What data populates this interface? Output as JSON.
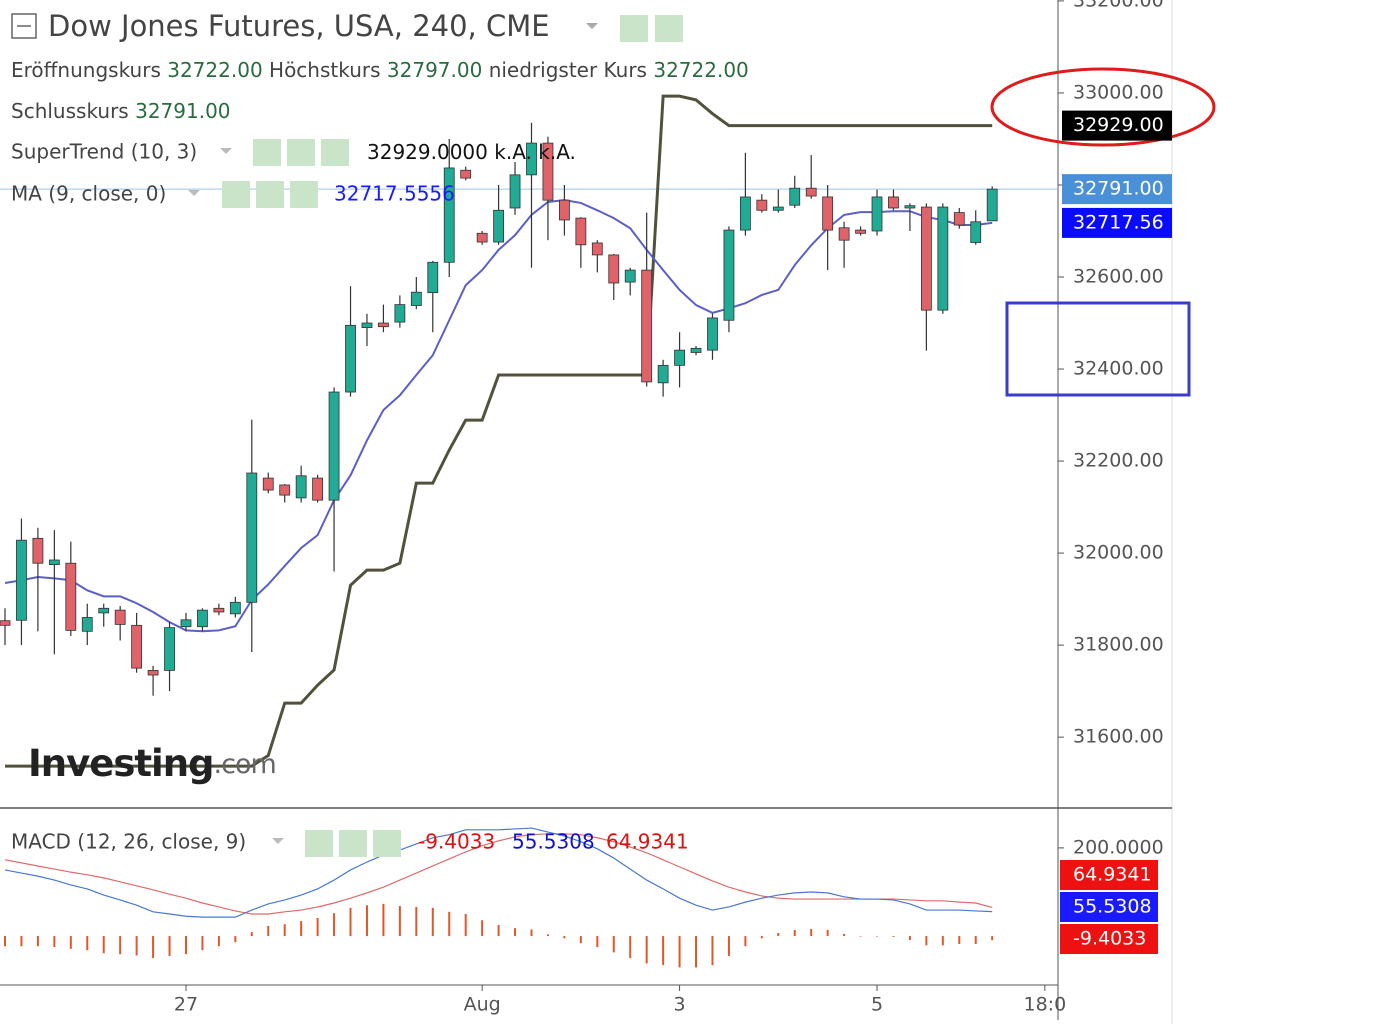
{
  "header": {
    "title": "Dow Jones Futures, USA, 240, CME",
    "ohlc": [
      {
        "label": "Eröffnungskurs",
        "value": "32722.00"
      },
      {
        "label": "Höchstkurs",
        "value": "32797.00"
      },
      {
        "label": "niedrigster Kurs",
        "value": "32722.00"
      }
    ],
    "close": {
      "label": "Schlusskurs",
      "value": "32791.00"
    }
  },
  "legend_values": {
    "supertrend": [
      "32929.0000",
      "k.A.",
      "k.A."
    ],
    "ma": "32717.5556"
  },
  "watermark": [
    "Investing",
    ".com"
  ],
  "chart_data": [
    {
      "type": "candlestick",
      "up_color": "#22ab94",
      "down_color": "#e0636a",
      "open": [
        31853,
        31854,
        32032,
        31975,
        31978,
        31830,
        31870,
        31876,
        31843,
        31745,
        31745,
        31840,
        31840,
        31880,
        31868,
        31893,
        32163,
        32148,
        32120,
        32163,
        32115,
        32350,
        32490,
        32500,
        32502,
        32538,
        32566,
        32632,
        32832,
        32695,
        32676,
        32750,
        32822,
        32891,
        32767,
        32728,
        32674,
        32648,
        32589,
        32615,
        32370,
        32408,
        32436,
        32441,
        32506,
        32702,
        32767,
        32745,
        32756,
        32793,
        32774,
        32707,
        32702,
        32700,
        32774,
        32750,
        32752,
        32528,
        32740,
        32675,
        32722
      ],
      "high": [
        31880,
        32075,
        32055,
        32050,
        32025,
        31890,
        31890,
        31885,
        31870,
        31755,
        31850,
        31870,
        31880,
        31890,
        31905,
        32290,
        32175,
        32150,
        32190,
        32170,
        32360,
        32580,
        32520,
        32540,
        32560,
        32600,
        32635,
        32900,
        32840,
        32700,
        32800,
        32850,
        32935,
        32905,
        32800,
        32730,
        32680,
        32650,
        32620,
        32740,
        32420,
        32480,
        32450,
        32520,
        32710,
        32870,
        32780,
        32790,
        32820,
        32865,
        32800,
        32720,
        32710,
        32790,
        32790,
        32760,
        32760,
        32760,
        32750,
        32745,
        32797
      ],
      "low": [
        31800,
        31800,
        31830,
        31780,
        31820,
        31800,
        31840,
        31810,
        31740,
        31690,
        31700,
        31830,
        31830,
        31865,
        31860,
        31785,
        32130,
        32110,
        32110,
        32110,
        31960,
        32340,
        32450,
        32480,
        32490,
        32530,
        32480,
        32600,
        32810,
        32670,
        32670,
        32735,
        32620,
        32680,
        32690,
        32620,
        32610,
        32550,
        32560,
        32362,
        32340,
        32360,
        32430,
        32420,
        32480,
        32690,
        32740,
        32740,
        32750,
        32770,
        32615,
        32620,
        32690,
        32690,
        32745,
        32700,
        32440,
        32520,
        32705,
        32670,
        32722
      ],
      "close": [
        31843,
        32028,
        31978,
        31985,
        31832,
        31860,
        31880,
        31845,
        31750,
        31735,
        31838,
        31855,
        31876,
        31872,
        31893,
        32174,
        32137,
        32126,
        32168,
        32115,
        32350,
        32495,
        32500,
        32492,
        32540,
        32567,
        32632,
        32837,
        32815,
        32676,
        32745,
        32822,
        32891,
        32767,
        32724,
        32670,
        32648,
        32587,
        32615,
        32372,
        32408,
        32441,
        32445,
        32511,
        32702,
        32774,
        32745,
        32752,
        32793,
        32776,
        32702,
        32680,
        32695,
        32774,
        32750,
        32755,
        32528,
        32752,
        32713,
        32720,
        32791
      ],
      "series": [
        {
          "name": "SuperTrend (10, 3)",
          "color": "#52523c",
          "values": [
            31537,
            31537,
            31537,
            31537,
            31537,
            31537,
            31537,
            31537,
            31537,
            31537,
            31537,
            31537,
            31537,
            31537,
            31537,
            31537,
            31560,
            31674,
            31674,
            31713,
            31746,
            31930,
            31963,
            31963,
            31978,
            32152,
            32152,
            32224,
            32289,
            32289,
            32387,
            32387,
            32387,
            32387,
            32387,
            32387,
            32387,
            32387,
            32387,
            32387,
            32993,
            32993,
            32985,
            32955,
            32929,
            32929,
            32929,
            32929,
            32929,
            32929,
            32929,
            32929,
            32929,
            32929,
            32929,
            32929,
            32929,
            32929,
            32929,
            32929,
            32929
          ]
        },
        {
          "name": "MA (9, close, 0)",
          "color": "#5b5fc7",
          "values": [
            31935,
            31941,
            31948,
            31945,
            31941,
            31919,
            31906,
            31906,
            31891,
            31872,
            31850,
            31832,
            31830,
            31832,
            31841,
            31898,
            31932,
            31972,
            32011,
            32039,
            32115,
            32169,
            32245,
            32311,
            32343,
            32387,
            32430,
            32506,
            32582,
            32615,
            32659,
            32691,
            32735,
            32763,
            32767,
            32761,
            32745,
            32728,
            32706,
            32659,
            32615,
            32572,
            32539,
            32522,
            32532,
            32543,
            32561,
            32572,
            32626,
            32669,
            32706,
            32735,
            32741,
            32741,
            32743,
            32743,
            32730,
            32724,
            32713,
            32713,
            32717.56
          ]
        }
      ],
      "axis_labels": {
        "supertrend": "32929.00",
        "close": "32791.00",
        "ma": "32717.56"
      },
      "ylim": [
        31446,
        33202
      ],
      "yticks": [
        {
          "value": 31600,
          "label": "31600.00"
        },
        {
          "value": 31800,
          "label": "31800.00"
        },
        {
          "value": 32000,
          "label": "32000.00"
        },
        {
          "value": 32200,
          "label": "32200.00"
        },
        {
          "value": 32400,
          "label": "32400.00"
        },
        {
          "value": 32600,
          "label": "32600.00"
        },
        {
          "value": 32800,
          "label": "32800.00"
        },
        {
          "value": 33000,
          "label": "33000.00"
        },
        {
          "value": 33200,
          "label": "33200.00"
        }
      ],
      "xlim": [
        -0.304,
        64
      ],
      "xticks": [
        {
          "value": 11,
          "label": "27"
        },
        {
          "value": 29,
          "label": "Aug"
        },
        {
          "value": 41,
          "label": "3"
        },
        {
          "value": 53,
          "label": "5"
        },
        {
          "value": 63.2,
          "label": "18:0"
        }
      ]
    },
    {
      "type": "macd",
      "name": "MACD (12, 26, close, 9)",
      "macd": {
        "color": "#4a78d0",
        "values": [
          150,
          143,
          136,
          127,
          116,
          107,
          93,
          82,
          70,
          55,
          50,
          45,
          43,
          43,
          43,
          59,
          73,
          82,
          93,
          107,
          127,
          150,
          168,
          184,
          195,
          209,
          223,
          230,
          241,
          241,
          241,
          243,
          245,
          236,
          227,
          214,
          198,
          177,
          152,
          127,
          107,
          86,
          70,
          59,
          66,
          77,
          86,
          93,
          98,
          100,
          98,
          89,
          84,
          84,
          82,
          73,
          59,
          59,
          59,
          57,
          55.5308
        ]
      },
      "signal": {
        "color": "#e06a6a",
        "values": [
          173,
          166,
          159,
          152,
          145,
          139,
          132,
          123,
          114,
          105,
          95,
          86,
          75,
          66,
          57,
          50,
          50,
          55,
          59,
          66,
          75,
          86,
          98,
          111,
          127,
          143,
          159,
          175,
          191,
          205,
          216,
          225,
          230,
          232,
          232,
          230,
          223,
          214,
          202,
          189,
          173,
          157,
          141,
          125,
          111,
          100,
          91,
          86,
          84,
          84,
          84,
          84,
          84,
          84,
          84,
          82,
          80,
          80,
          77,
          75,
          64.9341
        ]
      },
      "histogram": {
        "color": "#e0572b",
        "values": [
          -23,
          -23,
          -23,
          -25,
          -29,
          -32,
          -39,
          -41,
          -44,
          -50,
          -45,
          -41,
          -32,
          -23,
          -14,
          9,
          23,
          27,
          34,
          41,
          52,
          64,
          70,
          73,
          68,
          66,
          64,
          55,
          50,
          36,
          25,
          18,
          15,
          4,
          -5,
          -16,
          -25,
          -37,
          -50,
          -62,
          -66,
          -71,
          -71,
          -66,
          -45,
          -23,
          -5,
          7,
          14,
          16,
          14,
          5,
          0,
          0,
          -2,
          -9,
          -21,
          -21,
          -18,
          -18,
          -9.4033
        ]
      },
      "legend_values": [
        {
          "text": "-9.4033",
          "color": "#e01010"
        },
        {
          "text": "55.5308",
          "color": "#1010d0"
        },
        {
          "text": "64.9341",
          "color": "#e01010"
        }
      ],
      "axis_labels": [
        {
          "text": "64.9341",
          "color": "#ee1111"
        },
        {
          "text": "55.5308",
          "color": "#1a1aff"
        },
        {
          "text": "-9.4033",
          "color": "#ee1111"
        }
      ],
      "ylim": [
        -111,
        286
      ],
      "yticks": [
        {
          "value": 200,
          "label": "200.0000"
        }
      ]
    }
  ]
}
